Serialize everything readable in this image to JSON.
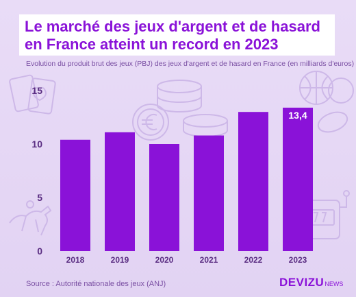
{
  "header": {
    "title_line1": "Le marché des jeux d'argent et de hasard",
    "title_line2": "en France atteint un record en 2023",
    "subtitle": "Evolution du produit brut des jeux (PBJ) des jeux d'argent et de hasard en France (en milliards d'euros)"
  },
  "footer": {
    "source": "Source : Autorité nationale des jeux (ANJ)",
    "logo_main": "DEVIZU",
    "logo_sub": "NEWS"
  },
  "colors": {
    "bar": "#8a12d8",
    "text": "#5a2d82",
    "accent": "#8a12d8"
  },
  "decor_icons": [
    "playing-cards-icon",
    "coins-icon",
    "euro-coin-icon",
    "sports-balls-icon",
    "horse-racing-icon",
    "slot-machine-icon"
  ],
  "chart_data": {
    "type": "bar",
    "title": "Le marché des jeux d'argent et de hasard en France atteint un record en 2023",
    "subtitle": "Evolution du produit brut des jeux (PBJ) des jeux d'argent et de hasard en France (en milliards d'euros)",
    "xlabel": "",
    "ylabel": "",
    "categories": [
      "2018",
      "2019",
      "2020",
      "2021",
      "2022",
      "2023"
    ],
    "values": [
      10.4,
      11.1,
      10.0,
      10.8,
      13.0,
      13.4
    ],
    "data_labels": {
      "2023": "13,4"
    },
    "ylim": [
      0,
      15
    ],
    "yticks": [
      0,
      5,
      10,
      15
    ],
    "grid": false,
    "legend": "none"
  }
}
